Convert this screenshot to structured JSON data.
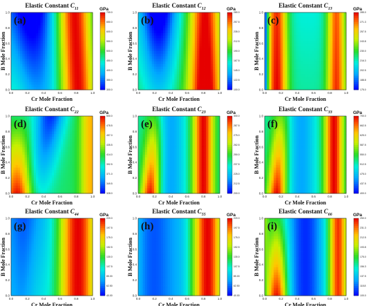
{
  "figure": {
    "panels": [
      {
        "letter": "(a)",
        "title_prefix": "Elastic Constant ",
        "title_sym": "C",
        "title_sub": "11",
        "unit": "GPa",
        "xlabel": "Cr Mole Fraction",
        "ylabel": "B Mole Fraction",
        "cb_ticks": [
          "700.0",
          "650.0",
          "600.0",
          "550.0",
          "500.0",
          "450.0",
          "400.0",
          "350.0",
          "300.0"
        ]
      },
      {
        "letter": "(b)",
        "title_prefix": "Elastic Constant ",
        "title_sym": "C",
        "title_sub": "12",
        "unit": "GPa",
        "xlabel": "Cr Mole Fraction",
        "ylabel": "B Mole Fraction",
        "cb_ticks": [
          "280.0",
          "257.5",
          "235.0",
          "212.5",
          "190.0",
          "167.5",
          "145.0",
          "122.5",
          "100.0"
        ]
      },
      {
        "letter": "(c)",
        "title_prefix": "Elastic Constant ",
        "title_sym": "C",
        "title_sub": "13",
        "unit": "GPa",
        "xlabel": "Cr Mole Fraction",
        "ylabel": "B Mole Fraction",
        "cb_ticks": [
          "285.0",
          "271.3",
          "257.5",
          "243.8",
          "230.0",
          "216.3",
          "202.5",
          "188.8",
          "175.0"
        ]
      },
      {
        "letter": "(d)",
        "title_prefix": "Elastic Constant ",
        "title_sym": "C",
        "title_sub": "22",
        "unit": "GPa",
        "xlabel": "Cr Mole Fraction",
        "ylabel": "B Mole Fraction",
        "cb_ticks": [
          "500.0",
          "478.5",
          "457.0",
          "435.5",
          "414.0",
          "392.5",
          "371.0",
          "349.5",
          "328.0"
        ]
      },
      {
        "letter": "(e)",
        "title_prefix": "Elastic Constant ",
        "title_sym": "C",
        "title_sub": "23",
        "unit": "GPa",
        "xlabel": "Cr Mole Fraction",
        "ylabel": "B Mole Fraction",
        "cb_ticks": [
          "300.0",
          "287.5",
          "275.0",
          "262.5",
          "250.0",
          "237.5",
          "225.0",
          "212.5",
          "200.0"
        ]
      },
      {
        "letter": "(f)",
        "title_prefix": "Elastic Constant ",
        "title_sym": "C",
        "title_sub": "33",
        "unit": "GPa",
        "xlabel": "Cr Mole Fraction",
        "ylabel": "B Mole Fraction",
        "cb_ticks": [
          "700.0",
          "662.5",
          "625.0",
          "587.5",
          "550.0",
          "512.5",
          "475.0",
          "437.5",
          "400.0"
        ]
      },
      {
        "letter": "(g)",
        "title_prefix": "Elastic Constant ",
        "title_sym": "C",
        "title_sub": "44",
        "unit": "GPa",
        "xlabel": "Cr Mole Fraction",
        "ylabel": "B Mole Fraction",
        "cb_ticks": [
          "220.0",
          "197.5",
          "175.0",
          "152.5",
          "130.0",
          "107.5",
          "85.00",
          "62.50",
          "40.00"
        ]
      },
      {
        "letter": "(h)",
        "title_prefix": "Elastic Constant ",
        "title_sym": "C",
        "title_sub": "55",
        "unit": "GPa",
        "xlabel": "Cr Mole Fraction",
        "ylabel": "B Mole Fraction",
        "cb_ticks": [
          "220.0",
          "197.5",
          "175.0",
          "152.5",
          "130.0",
          "107.5",
          "85.00",
          "62.50",
          "40.00"
        ]
      },
      {
        "letter": "(i)",
        "title_prefix": "Elastic Constant ",
        "title_sym": "C",
        "title_sub": "66",
        "unit": "GPa",
        "xlabel": "Cr Mole Fraction",
        "ylabel": "B Mole Fraction",
        "cb_ticks": [
          "250.0",
          "231.3",
          "212.5",
          "193.8",
          "175.0",
          "156.3",
          "137.5",
          "118.8",
          "100.0"
        ]
      }
    ],
    "axis_ticks": [
      "0.0",
      "0.2",
      "0.4",
      "0.6",
      "0.8",
      "1.0"
    ]
  },
  "chart_data": [
    {
      "type": "heatmap",
      "panel": "(a)",
      "xlim": [
        0,
        1
      ],
      "ylim": [
        0,
        1
      ],
      "zlim": [
        300,
        700
      ],
      "colormap": "rainbow (blue-cyan-green-yellow-red)",
      "pattern": "low values at upper-left, rising toward Cr 0.7-0.9 (red bands)"
    },
    {
      "type": "heatmap",
      "panel": "(b)",
      "xlim": [
        0,
        1
      ],
      "ylim": [
        0,
        1
      ],
      "zlim": [
        100,
        280
      ],
      "colormap": "rainbow",
      "pattern": "low at Cr 0.2-0.3, high band near Cr 0.8"
    },
    {
      "type": "heatmap",
      "panel": "(c)",
      "xlim": [
        0,
        1
      ],
      "ylim": [
        0,
        1
      ],
      "zlim": [
        175,
        285
      ],
      "colormap": "rainbow",
      "pattern": "high bands near Cr 0.15 and 0.9, low near Cr 0.0"
    },
    {
      "type": "heatmap",
      "panel": "(d)",
      "xlim": [
        0,
        1
      ],
      "ylim": [
        0,
        1
      ],
      "zlim": [
        328,
        500
      ],
      "colormap": "rainbow",
      "pattern": "high at low Cr/low B, high right edge, low wave near Cr 0.5"
    },
    {
      "type": "heatmap",
      "panel": "(e)",
      "xlim": [
        0,
        1
      ],
      "ylim": [
        0,
        1
      ],
      "zlim": [
        200,
        300
      ],
      "colormap": "rainbow",
      "pattern": "high near Cr 0.15 low B and Cr 0.8"
    },
    {
      "type": "heatmap",
      "panel": "(f)",
      "xlim": [
        0,
        1
      ],
      "ylim": [
        0,
        1
      ],
      "zlim": [
        400,
        700
      ],
      "colormap": "rainbow",
      "pattern": "high near Cr 0.15 low B and Cr 0.85"
    },
    {
      "type": "heatmap",
      "panel": "(g)",
      "xlim": [
        0,
        1
      ],
      "ylim": [
        0,
        1
      ],
      "zlim": [
        40,
        220
      ],
      "colormap": "rainbow",
      "pattern": "low near Cr 0.1-0.2, high near Cr 0.8"
    },
    {
      "type": "heatmap",
      "panel": "(h)",
      "xlim": [
        0,
        1
      ],
      "ylim": [
        0,
        1
      ],
      "zlim": [
        40,
        220
      ],
      "colormap": "rainbow",
      "pattern": "low near Cr 0.2, high near Cr 0.85"
    },
    {
      "type": "heatmap",
      "panel": "(i)",
      "xlim": [
        0,
        1
      ],
      "ylim": [
        0,
        1
      ],
      "zlim": [
        100,
        250
      ],
      "colormap": "rainbow",
      "pattern": "high near Cr 0.15 low B and Cr 0.9, low near Cr 0.5"
    }
  ]
}
